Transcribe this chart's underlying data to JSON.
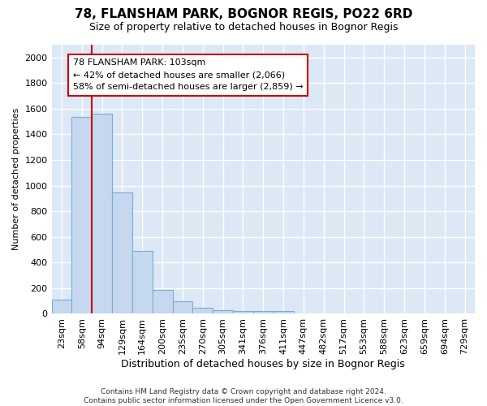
{
  "title": "78, FLANSHAM PARK, BOGNOR REGIS, PO22 6RD",
  "subtitle": "Size of property relative to detached houses in Bognor Regis",
  "xlabel": "Distribution of detached houses by size in Bognor Regis",
  "ylabel": "Number of detached properties",
  "bin_labels": [
    "23sqm",
    "58sqm",
    "94sqm",
    "129sqm",
    "164sqm",
    "200sqm",
    "235sqm",
    "270sqm",
    "305sqm",
    "341sqm",
    "376sqm",
    "411sqm",
    "447sqm",
    "482sqm",
    "517sqm",
    "553sqm",
    "588sqm",
    "623sqm",
    "659sqm",
    "694sqm",
    "729sqm"
  ],
  "bin_values": [
    110,
    1535,
    1560,
    950,
    490,
    185,
    100,
    45,
    30,
    20,
    20,
    20,
    0,
    0,
    0,
    0,
    0,
    0,
    0,
    0,
    0
  ],
  "bar_color": "#c5d8f0",
  "bar_edge_color": "#7aacd6",
  "property_line_color": "#cc0000",
  "property_line_x": 2.5,
  "annotation_text": "78 FLANSHAM PARK: 103sqm\n← 42% of detached houses are smaller (2,066)\n58% of semi-detached houses are larger (2,859) →",
  "annotation_box_facecolor": "#ffffff",
  "annotation_box_edgecolor": "#cc0000",
  "ylim": [
    0,
    2100
  ],
  "yticks": [
    0,
    200,
    400,
    600,
    800,
    1000,
    1200,
    1400,
    1600,
    1800,
    2000
  ],
  "footer_line1": "Contains HM Land Registry data © Crown copyright and database right 2024.",
  "footer_line2": "Contains public sector information licensed under the Open Government Licence v3.0.",
  "fig_background_color": "#ffffff",
  "plot_bg_color": "#dce8f5",
  "grid_color": "#ffffff",
  "title_fontsize": 11,
  "subtitle_fontsize": 9,
  "xlabel_fontsize": 9,
  "ylabel_fontsize": 8,
  "tick_fontsize": 8,
  "footer_fontsize": 6.5,
  "annotation_fontsize": 8
}
